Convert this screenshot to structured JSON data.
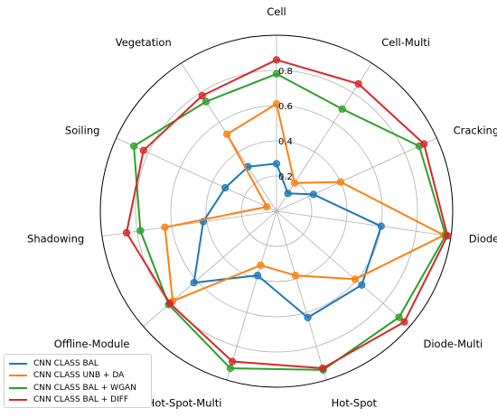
{
  "chart_data": {
    "type": "radar",
    "categories": [
      "Cell",
      "Cell-Multi",
      "Cracking",
      "Diode",
      "Diode-Multi",
      "Hot-Spot",
      "Hot-Spot-Multi",
      "Offline-Module",
      "Shadowing",
      "Soiling",
      "Vegetation"
    ],
    "rlim": [
      0,
      1
    ],
    "rticks": [
      "0.2",
      "0.4",
      "0.6",
      "0.8"
    ],
    "grid": true,
    "legend_position": "bottom-left",
    "series": [
      {
        "name": "CNN CLASS BAL",
        "color": "#1f77b4",
        "values": [
          0.27,
          0.12,
          0.23,
          0.6,
          0.64,
          0.63,
          0.38,
          0.62,
          0.42,
          0.32,
          0.3
        ]
      },
      {
        "name": "CNN CLASS UNB + DA",
        "color": "#ff7f0e",
        "values": [
          0.61,
          0.19,
          0.4,
          0.96,
          0.59,
          0.38,
          0.32,
          0.78,
          0.64,
          0.06,
          0.52
        ]
      },
      {
        "name": "CNN CLASS BAL + WGAN",
        "color": "#2ca02c",
        "values": [
          0.78,
          0.69,
          0.89,
          0.97,
          0.92,
          0.94,
          0.93,
          0.81,
          0.78,
          0.89,
          0.74
        ]
      },
      {
        "name": "CNN CLASS BAL + DIFF",
        "color": "#d62728",
        "values": [
          0.86,
          0.86,
          0.92,
          0.98,
          0.96,
          0.93,
          0.89,
          0.8,
          0.86,
          0.83,
          0.78
        ]
      }
    ]
  }
}
